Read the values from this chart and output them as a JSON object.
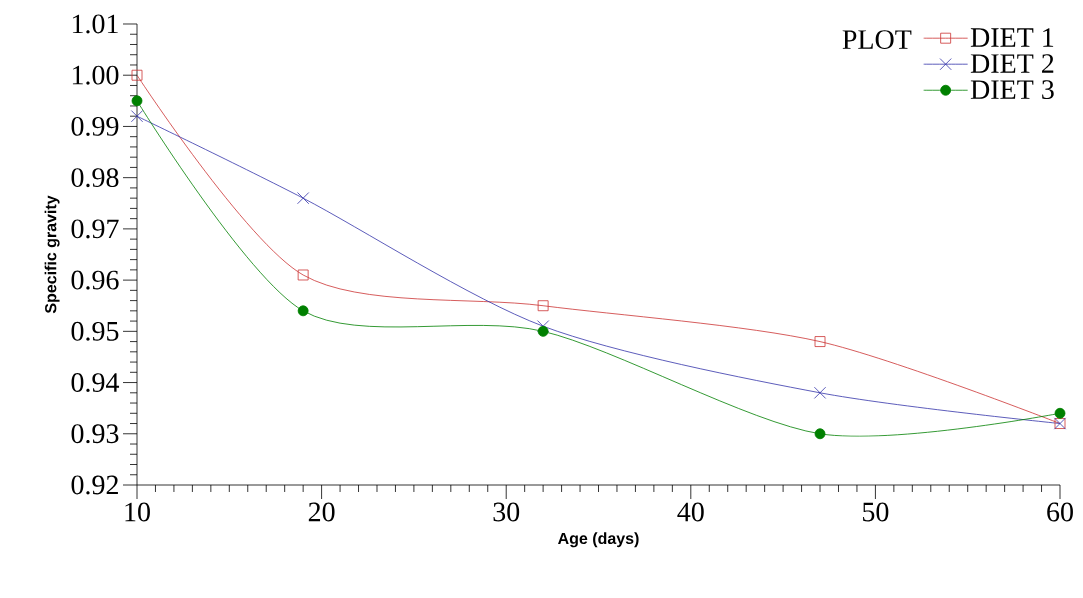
{
  "chart_data": {
    "type": "line",
    "xlabel": "Age (days)",
    "ylabel": "Specific gravity",
    "legend_title": "PLOT",
    "legend": "top right",
    "line_style": "solid",
    "x": [
      10,
      19,
      32,
      47,
      60
    ],
    "series": [
      {
        "name": "DIET 1",
        "color": "#cc3333",
        "marker": "square",
        "values": [
          1.0,
          0.961,
          0.955,
          0.948,
          0.932
        ]
      },
      {
        "name": "DIET 2",
        "color": "#3333aa",
        "marker": "cross",
        "values": [
          0.992,
          0.976,
          0.951,
          0.938,
          0.932
        ]
      },
      {
        "name": "DIET 3",
        "color": "#008000",
        "marker": "circle",
        "values": [
          0.995,
          0.954,
          0.95,
          0.93,
          0.934
        ]
      }
    ],
    "xlim": [
      10,
      60
    ],
    "ylim": [
      0.92,
      1.01
    ],
    "xticks": [
      10,
      20,
      30,
      40,
      50,
      60
    ],
    "yticks": [
      0.92,
      0.93,
      0.94,
      0.95,
      0.96,
      0.97,
      0.98,
      0.99,
      {
        "value": 1.0,
        "label": "1.00"
      },
      1.01
    ]
  }
}
